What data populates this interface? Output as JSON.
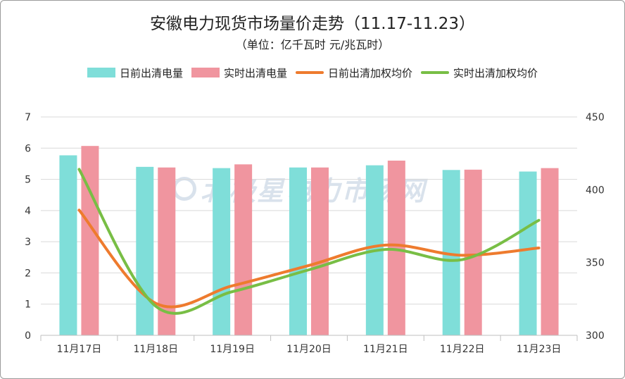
{
  "chart_data": {
    "type": "bar",
    "title": "安徽电力现货市场量价走势（11.17-11.23）",
    "subtitle": "（单位：亿千瓦时 元/兆瓦时）",
    "categories": [
      "11月17日",
      "11月18日",
      "11月19日",
      "11月20日",
      "11月21日",
      "11月22日",
      "11月23日"
    ],
    "series": [
      {
        "name": "日前出清电量",
        "type": "bar",
        "axis": "left",
        "color": "#7fded9",
        "values": [
          5.77,
          5.4,
          5.36,
          5.38,
          5.45,
          5.3,
          5.25
        ]
      },
      {
        "name": "实时出清电量",
        "type": "bar",
        "axis": "left",
        "color": "#f0959f",
        "values": [
          6.07,
          5.38,
          5.48,
          5.38,
          5.6,
          5.31,
          5.36
        ]
      },
      {
        "name": "日前出清加权均价",
        "type": "line",
        "axis": "right",
        "color": "#ee7b2e",
        "values": [
          386,
          322,
          334,
          348,
          362,
          355,
          360
        ]
      },
      {
        "name": "实时出清加权均价",
        "type": "line",
        "axis": "right",
        "color": "#78be45",
        "values": [
          414,
          320,
          330,
          345,
          359,
          352,
          379
        ]
      }
    ],
    "y_left": {
      "min": 0,
      "max": 7,
      "ticks": [
        "0",
        "1",
        "2",
        "3",
        "4",
        "5",
        "6",
        "7"
      ]
    },
    "y_right": {
      "min": 300,
      "max": 450,
      "ticks": [
        "300",
        "350",
        "400",
        "450"
      ]
    },
    "grid": true,
    "legend_position": "top"
  },
  "watermark": {
    "text": "北极星电力市场网"
  }
}
